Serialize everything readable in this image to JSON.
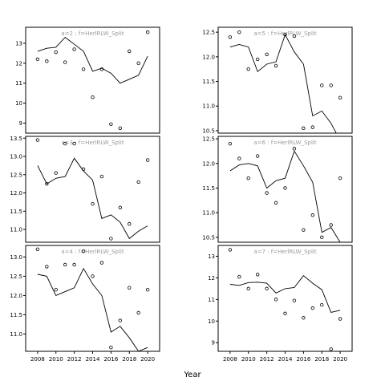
{
  "chart_data": {
    "type": "scatter",
    "xlabel": "Year",
    "xlim": [
      2006.7,
      2021.3
    ],
    "x_ticks": [
      2008,
      2010,
      2012,
      2014,
      2016,
      2018,
      2020
    ],
    "x_tick_labels": [
      "2008",
      "2010",
      "2012",
      "2014",
      "2016",
      "2018",
      "2020"
    ],
    "panels": [
      {
        "id": "a2",
        "strip": "a=2  :  f=HerlRLW_Split",
        "ylim": [
          8.5,
          13.8
        ],
        "y_ticks": [
          9,
          10,
          11,
          12,
          13
        ],
        "y_tick_labels": [
          "9",
          "10",
          "11",
          "12",
          "13"
        ],
        "points": {
          "x": [
            2008,
            2009,
            2010,
            2011,
            2012,
            2013,
            2014,
            2015,
            2016,
            2017,
            2018,
            2019,
            2020
          ],
          "y": [
            12.2,
            12.1,
            12.55,
            12.05,
            12.7,
            11.7,
            10.3,
            11.7,
            8.95,
            8.75,
            12.6,
            12.0,
            13.55
          ]
        },
        "fit": {
          "x": [
            2008,
            2009,
            2010,
            2011,
            2012,
            2013,
            2014,
            2015,
            2016,
            2017,
            2018,
            2019,
            2020
          ],
          "y": [
            12.6,
            12.75,
            12.8,
            13.3,
            12.95,
            12.6,
            11.6,
            11.75,
            11.5,
            11.0,
            11.2,
            11.4,
            12.35
          ]
        }
      },
      {
        "id": "a5",
        "strip": "a=5  :  f=HerlRLW_Split",
        "ylim": [
          10.45,
          12.6
        ],
        "y_ticks": [
          10.5,
          11.0,
          11.5,
          12.0,
          12.5
        ],
        "y_tick_labels": [
          "10.5",
          "11.0",
          "11.5",
          "12.0",
          "12.5"
        ],
        "points": {
          "x": [
            2008,
            2009,
            2010,
            2011,
            2012,
            2013,
            2014,
            2015,
            2016,
            2017,
            2018,
            2019,
            2020
          ],
          "y": [
            12.4,
            12.5,
            11.75,
            11.95,
            12.05,
            11.82,
            12.45,
            12.42,
            10.55,
            10.57,
            11.42,
            11.42,
            11.17
          ]
        },
        "fit": {
          "x": [
            2008,
            2009,
            2010,
            2011,
            2012,
            2013,
            2014,
            2015,
            2016,
            2017,
            2018,
            2019,
            2020
          ],
          "y": [
            12.2,
            12.25,
            12.2,
            11.7,
            11.85,
            11.9,
            12.45,
            12.1,
            11.85,
            10.8,
            10.9,
            10.65,
            10.3
          ]
        }
      },
      {
        "id": "a3",
        "strip": "a=3  :  f=HerlRLW_Split",
        "ylim": [
          10.65,
          13.55
        ],
        "y_ticks": [
          11.0,
          11.5,
          12.0,
          12.5,
          13.0,
          13.5
        ],
        "y_tick_labels": [
          "11.0",
          "11.5",
          "12.0",
          "12.5",
          "13.0",
          "13.5"
        ],
        "points": {
          "x": [
            2008,
            2009,
            2010,
            2011,
            2012,
            2013,
            2014,
            2015,
            2016,
            2017,
            2018,
            2019,
            2020
          ],
          "y": [
            13.45,
            12.25,
            12.55,
            13.35,
            13.35,
            12.65,
            11.7,
            12.45,
            10.75,
            11.6,
            11.15,
            12.3,
            12.9
          ]
        },
        "fit": {
          "x": [
            2008,
            2009,
            2010,
            2011,
            2012,
            2013,
            2014,
            2015,
            2016,
            2017,
            2018,
            2019,
            2020
          ],
          "y": [
            12.75,
            12.25,
            12.4,
            12.45,
            12.95,
            12.6,
            12.35,
            11.3,
            11.4,
            11.2,
            10.75,
            10.95,
            11.1
          ]
        }
      },
      {
        "id": "a6",
        "strip": "a=6  :  f=HerlRLW_Split",
        "ylim": [
          10.4,
          12.55
        ],
        "y_ticks": [
          10.5,
          11.0,
          11.5,
          12.0,
          12.5
        ],
        "y_tick_labels": [
          "10.5",
          "11.0",
          "11.5",
          "12.0",
          "12.5"
        ],
        "points": {
          "x": [
            2008,
            2009,
            2010,
            2011,
            2012,
            2013,
            2014,
            2015,
            2016,
            2017,
            2018,
            2019,
            2020
          ],
          "y": [
            12.4,
            12.1,
            11.7,
            12.15,
            11.4,
            11.2,
            11.5,
            12.3,
            10.65,
            10.95,
            10.5,
            10.75,
            11.7
          ]
        },
        "fit": {
          "x": [
            2008,
            2009,
            2010,
            2011,
            2012,
            2013,
            2014,
            2015,
            2016,
            2017,
            2018,
            2019,
            2020
          ],
          "y": [
            11.85,
            11.97,
            12.0,
            11.95,
            11.5,
            11.65,
            11.7,
            12.25,
            11.95,
            11.62,
            10.6,
            10.7,
            10.4
          ]
        }
      },
      {
        "id": "a4",
        "strip": "a=4  :  f=HerlRLW_Split",
        "ylim": [
          10.55,
          13.3
        ],
        "y_ticks": [
          11.0,
          11.5,
          12.0,
          12.5,
          13.0
        ],
        "y_tick_labels": [
          "11.0",
          "11.5",
          "12.0",
          "12.5",
          "13.0"
        ],
        "points": {
          "x": [
            2008,
            2009,
            2010,
            2011,
            2012,
            2013,
            2014,
            2015,
            2016,
            2017,
            2018,
            2019,
            2020
          ],
          "y": [
            13.2,
            12.75,
            12.15,
            12.8,
            12.8,
            13.15,
            12.5,
            12.85,
            10.65,
            11.35,
            12.2,
            11.55,
            12.15
          ]
        },
        "fit": {
          "x": [
            2008,
            2009,
            2010,
            2011,
            2012,
            2013,
            2014,
            2015,
            2016,
            2017,
            2018,
            2019,
            2020
          ],
          "y": [
            12.55,
            12.5,
            12.0,
            12.1,
            12.2,
            12.7,
            12.3,
            12.0,
            11.05,
            11.2,
            10.9,
            10.55,
            10.65
          ]
        }
      },
      {
        "id": "a7",
        "strip": "a=7  :  f=HerlRLW_Split",
        "ylim": [
          8.6,
          13.5
        ],
        "y_ticks": [
          9,
          10,
          11,
          12,
          13
        ],
        "y_tick_labels": [
          "9",
          "10",
          "11",
          "12",
          "13"
        ],
        "points": {
          "x": [
            2008,
            2009,
            2010,
            2011,
            2012,
            2013,
            2014,
            2015,
            2016,
            2017,
            2018,
            2019,
            2020
          ],
          "y": [
            13.3,
            12.05,
            11.5,
            12.15,
            11.5,
            11.0,
            10.35,
            10.95,
            10.15,
            10.6,
            10.75,
            8.7,
            10.1
          ]
        },
        "fit": {
          "x": [
            2008,
            2009,
            2010,
            2011,
            2012,
            2013,
            2014,
            2015,
            2016,
            2017,
            2018,
            2019,
            2020
          ],
          "y": [
            11.7,
            11.65,
            11.78,
            11.8,
            11.75,
            11.3,
            11.5,
            11.55,
            12.1,
            11.75,
            11.45,
            10.4,
            10.5
          ]
        }
      }
    ]
  }
}
